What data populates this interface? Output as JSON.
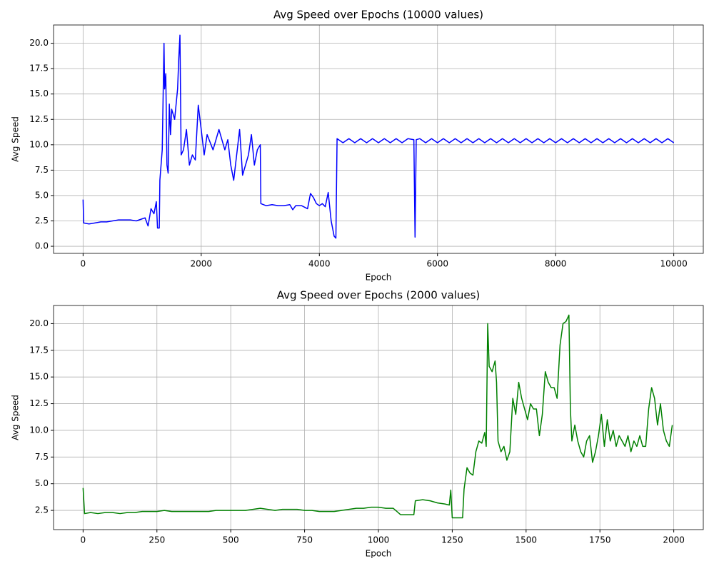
{
  "chart_data": [
    {
      "type": "line",
      "title": "Avg Speed over Epochs (10000 values)",
      "xlabel": "Epoch",
      "ylabel": "Avg Speed",
      "grid": true,
      "xlim": [
        -500,
        10500
      ],
      "ylim": [
        -0.7,
        21.8
      ],
      "xticks": [
        0,
        2000,
        4000,
        6000,
        8000,
        10000
      ],
      "yticks": [
        {
          "value": 0,
          "label": "0.0"
        },
        2.5,
        {
          "value": 5,
          "label": "5.0"
        },
        7.5,
        {
          "value": 10,
          "label": "10.0"
        },
        12.5,
        {
          "value": 15,
          "label": "15.0"
        },
        17.5,
        {
          "value": 20,
          "label": "20.0"
        }
      ],
      "x": [
        0,
        10,
        100,
        200,
        300,
        400,
        500,
        600,
        700,
        800,
        900,
        1000,
        1050,
        1100,
        1150,
        1200,
        1240,
        1260,
        1290,
        1300,
        1340,
        1370,
        1380,
        1400,
        1420,
        1440,
        1460,
        1480,
        1500,
        1550,
        1600,
        1620,
        1640,
        1660,
        1700,
        1750,
        1800,
        1850,
        1900,
        1950,
        2000,
        2050,
        2100,
        2200,
        2300,
        2400,
        2450,
        2500,
        2550,
        2600,
        2650,
        2700,
        2750,
        2800,
        2850,
        2900,
        2950,
        3000,
        3010,
        3100,
        3200,
        3300,
        3400,
        3500,
        3550,
        3600,
        3700,
        3800,
        3850,
        3900,
        3950,
        4000,
        4050,
        4100,
        4150,
        4200,
        4250,
        4280,
        4300,
        4400,
        4500,
        4600,
        4700,
        4800,
        4900,
        5000,
        5100,
        5200,
        5300,
        5400,
        5500,
        5600,
        5620,
        5640,
        5700,
        5800,
        5900,
        6000,
        6100,
        6200,
        6300,
        6400,
        6500,
        6600,
        6700,
        6800,
        6900,
        7000,
        7100,
        7200,
        7300,
        7400,
        7500,
        7600,
        7700,
        7800,
        7900,
        8000,
        8100,
        8200,
        8300,
        8400,
        8500,
        8600,
        8700,
        8800,
        8900,
        9000,
        9100,
        9200,
        9300,
        9400,
        9500,
        9600,
        9700,
        9800,
        9900,
        10000
      ],
      "series": [
        {
          "name": "Avg Speed",
          "color": "#0000ff",
          "values": [
            4.6,
            2.3,
            2.2,
            2.3,
            2.4,
            2.4,
            2.5,
            2.6,
            2.6,
            2.6,
            2.5,
            2.7,
            2.8,
            2.0,
            3.7,
            3.2,
            4.4,
            1.8,
            1.8,
            6.5,
            9.5,
            20.0,
            15.5,
            17.0,
            8.0,
            7.2,
            14.0,
            11.0,
            13.5,
            12.5,
            15.5,
            18.5,
            20.8,
            9.0,
            9.5,
            11.5,
            8.0,
            9.0,
            8.5,
            13.9,
            11.5,
            9.0,
            11.0,
            9.5,
            11.5,
            9.5,
            10.5,
            8.0,
            6.5,
            9.0,
            11.5,
            7.0,
            8.0,
            9.0,
            11.0,
            8.0,
            9.5,
            10.0,
            4.2,
            4.0,
            4.1,
            4.0,
            4.0,
            4.1,
            3.6,
            4.0,
            4.0,
            3.7,
            5.2,
            4.8,
            4.2,
            4.0,
            4.2,
            3.9,
            5.3,
            2.5,
            1.0,
            0.8,
            10.6,
            10.2,
            10.6,
            10.2,
            10.6,
            10.2,
            10.6,
            10.2,
            10.6,
            10.2,
            10.6,
            10.2,
            10.6,
            10.5,
            0.9,
            10.5,
            10.6,
            10.2,
            10.6,
            10.2,
            10.6,
            10.2,
            10.6,
            10.2,
            10.6,
            10.2,
            10.6,
            10.2,
            10.6,
            10.2,
            10.6,
            10.2,
            10.6,
            10.2,
            10.6,
            10.2,
            10.6,
            10.2,
            10.6,
            10.2,
            10.6,
            10.2,
            10.6,
            10.2,
            10.6,
            10.2,
            10.6,
            10.2,
            10.6,
            10.2,
            10.6,
            10.2,
            10.6,
            10.2,
            10.6,
            10.2,
            10.6,
            10.2,
            10.6,
            10.2
          ]
        }
      ]
    },
    {
      "type": "line",
      "title": "Avg Speed over Epochs (2000 values)",
      "xlabel": "Epoch",
      "ylabel": "Avg Speed",
      "grid": true,
      "xlim": [
        -100,
        2100
      ],
      "ylim": [
        0.7,
        21.7
      ],
      "xticks": [
        0,
        250,
        500,
        750,
        1000,
        1250,
        1500,
        1750,
        2000
      ],
      "yticks": [
        2.5,
        {
          "value": 5,
          "label": "5.0"
        },
        7.5,
        {
          "value": 10,
          "label": "10.0"
        },
        12.5,
        {
          "value": 15,
          "label": "15.0"
        },
        17.5,
        {
          "value": 20,
          "label": "20.0"
        }
      ],
      "x": [
        0,
        5,
        25,
        50,
        75,
        100,
        125,
        150,
        175,
        200,
        225,
        250,
        275,
        300,
        325,
        350,
        375,
        400,
        425,
        450,
        475,
        500,
        525,
        550,
        575,
        600,
        625,
        650,
        675,
        700,
        725,
        750,
        775,
        800,
        825,
        850,
        875,
        900,
        925,
        950,
        975,
        1000,
        1025,
        1050,
        1075,
        1100,
        1120,
        1125,
        1150,
        1175,
        1200,
        1225,
        1240,
        1245,
        1250,
        1275,
        1285,
        1290,
        1300,
        1310,
        1320,
        1330,
        1340,
        1350,
        1360,
        1365,
        1370,
        1375,
        1385,
        1395,
        1400,
        1405,
        1415,
        1425,
        1435,
        1445,
        1455,
        1465,
        1475,
        1485,
        1495,
        1505,
        1515,
        1525,
        1535,
        1545,
        1555,
        1565,
        1575,
        1585,
        1595,
        1605,
        1615,
        1625,
        1635,
        1645,
        1650,
        1655,
        1665,
        1675,
        1685,
        1695,
        1705,
        1715,
        1725,
        1735,
        1745,
        1755,
        1765,
        1775,
        1785,
        1795,
        1805,
        1815,
        1825,
        1835,
        1845,
        1855,
        1865,
        1875,
        1885,
        1895,
        1905,
        1915,
        1925,
        1935,
        1945,
        1955,
        1965,
        1975,
        1985,
        1995
      ],
      "series": [
        {
          "name": "Avg Speed",
          "color": "#008000",
          "values": [
            4.6,
            2.2,
            2.3,
            2.2,
            2.3,
            2.3,
            2.2,
            2.3,
            2.3,
            2.4,
            2.4,
            2.4,
            2.5,
            2.4,
            2.4,
            2.4,
            2.4,
            2.4,
            2.4,
            2.5,
            2.5,
            2.5,
            2.5,
            2.5,
            2.6,
            2.7,
            2.6,
            2.5,
            2.6,
            2.6,
            2.6,
            2.5,
            2.5,
            2.4,
            2.4,
            2.4,
            2.5,
            2.6,
            2.7,
            2.7,
            2.8,
            2.8,
            2.7,
            2.7,
            2.1,
            2.1,
            2.1,
            3.4,
            3.5,
            3.4,
            3.2,
            3.1,
            3.0,
            4.4,
            1.8,
            1.8,
            1.8,
            4.5,
            6.5,
            6.0,
            5.8,
            8.0,
            9.0,
            8.8,
            9.8,
            8.5,
            20.0,
            16.0,
            15.5,
            16.5,
            14.5,
            9.0,
            8.0,
            8.5,
            7.2,
            8.0,
            13.0,
            11.5,
            14.5,
            13.0,
            12.0,
            11.0,
            12.5,
            12.0,
            12.0,
            9.5,
            11.5,
            15.5,
            14.5,
            14.0,
            14.0,
            13.0,
            18.0,
            20.0,
            20.2,
            20.8,
            12.0,
            9.0,
            10.5,
            9.0,
            8.0,
            7.5,
            9.0,
            9.5,
            7.0,
            8.0,
            9.5,
            11.5,
            8.5,
            11.0,
            9.0,
            10.0,
            8.5,
            9.5,
            9.0,
            8.5,
            9.5,
            8.0,
            9.0,
            8.5,
            9.5,
            8.5,
            8.5,
            12.0,
            14.0,
            13.0,
            10.5,
            12.5,
            10.0,
            9.0,
            8.5,
            10.5
          ]
        }
      ]
    }
  ]
}
